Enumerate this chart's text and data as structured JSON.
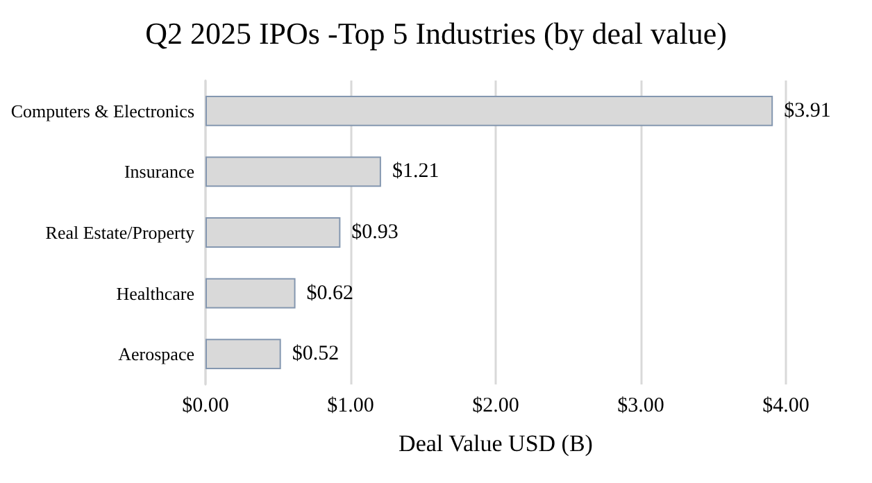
{
  "chart_data": {
    "type": "bar",
    "orientation": "horizontal",
    "title": "Q2 2025 IPOs -Top 5 Industries (by deal value)",
    "xlabel": "Deal Value USD (B)",
    "categories": [
      "Computers & Electronics",
      "Insurance",
      "Real Estate/Property",
      "Healthcare",
      "Aerospace"
    ],
    "values": [
      3.91,
      1.21,
      0.93,
      0.62,
      0.52
    ],
    "value_labels": [
      "$3.91",
      "$1.21",
      "$0.93",
      "$0.62",
      "$0.52"
    ],
    "color": "#d9d9d9",
    "xlim": [
      0,
      4
    ],
    "xticks": [
      {
        "value": 0,
        "label": "$0.00"
      },
      {
        "value": 1,
        "label": "$1.00"
      },
      {
        "value": 2,
        "label": "$2.00"
      },
      {
        "value": 3,
        "label": "$3.00"
      },
      {
        "value": 4,
        "label": "$4.00"
      }
    ],
    "grid": "x"
  }
}
